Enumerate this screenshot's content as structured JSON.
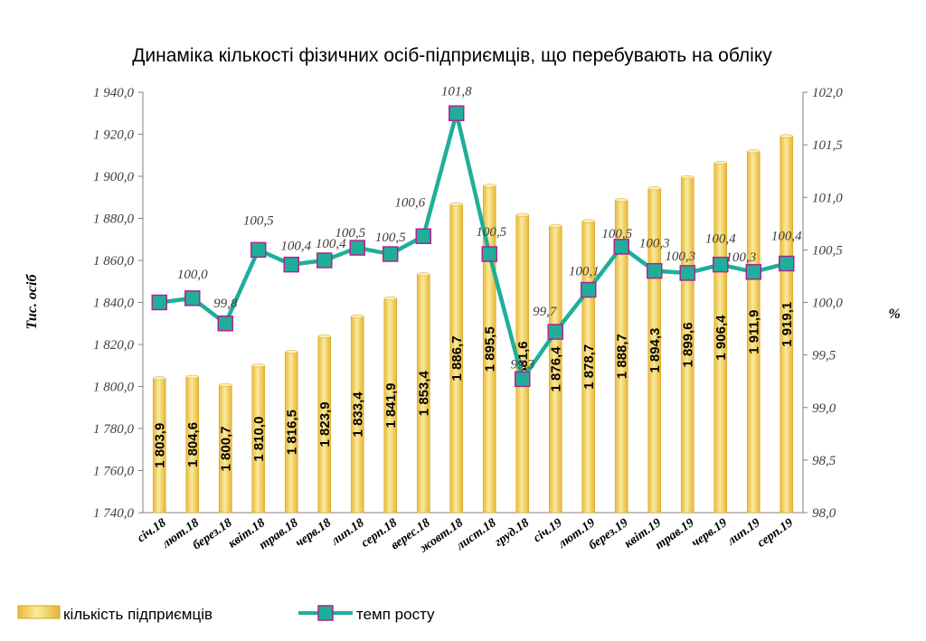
{
  "chart_data": {
    "type": "bar+line",
    "title": "Динаміка кількості фізичних осіб-підприємців, що перебувають на обліку",
    "categories": [
      "січ.18",
      "лют.18",
      "берез.18",
      "квіт.18",
      "трав.18",
      "черв.18",
      "лип.18",
      "серп.18",
      "верес.18",
      "жовт.18",
      "лист.18",
      "груд.18",
      "січ.19",
      "лют.19",
      "берез.19",
      "квіт.19",
      "трав.19",
      "черв.19",
      "лип.19",
      "серп.19"
    ],
    "series": [
      {
        "name": "кількість підприємців",
        "type": "bar",
        "axis": "left",
        "color": "#F2D566",
        "values": [
          1803.9,
          1804.6,
          1800.7,
          1810.0,
          1816.5,
          1823.9,
          1833.4,
          1841.9,
          1853.4,
          1886.7,
          1895.5,
          1881.6,
          1876.4,
          1878.7,
          1888.7,
          1894.3,
          1899.6,
          1906.4,
          1911.9,
          1919.1
        ],
        "labels": [
          "1 803,9",
          "1 804,6",
          "1 800,7",
          "1 810,0",
          "1 816,5",
          "1 823,9",
          "1 833,4",
          "1 841,9",
          "1 853,4",
          "1 886,7",
          "1 895,5",
          "1 881,6",
          "1 876,4",
          "1 878,7",
          "1 888,7",
          "1 894,3",
          "1 899,6",
          "1 906,4",
          "1 911,9",
          "1 919,1"
        ]
      },
      {
        "name": "темп росту",
        "type": "line",
        "axis": "right",
        "color": "#1FAE9A",
        "marker_border": "#B2228F",
        "values": [
          100.0,
          100.04,
          99.8,
          100.5,
          100.36,
          100.4,
          100.52,
          100.46,
          100.63,
          101.8,
          100.46,
          99.27,
          99.72,
          100.12,
          100.53,
          100.3,
          100.28,
          100.36,
          100.29,
          100.37
        ],
        "labels": [
          "",
          "100,0",
          "99,8",
          "100,5",
          "100,4",
          "100,4",
          "100,5",
          "100,5",
          "100,6",
          "101,8",
          "100,5",
          "99,3",
          "99,7",
          "100,1",
          "100,5",
          "100,3",
          "100,3",
          "100,4",
          "100,3",
          "100,4"
        ]
      }
    ],
    "y_left": {
      "label": "Тис. осіб",
      "range": [
        1740,
        1940
      ],
      "ticks": [
        "1 740,0",
        "1 760,0",
        "1 780,0",
        "1 800,0",
        "1 820,0",
        "1 840,0",
        "1 860,0",
        "1 880,0",
        "1 900,0",
        "1 920,0",
        "1 940,0"
      ]
    },
    "y_right": {
      "label": "%",
      "range": [
        98.0,
        102.0
      ],
      "ticks": [
        "98,0",
        "98,5",
        "99,0",
        "99,5",
        "100,0",
        "100,5",
        "101,0",
        "101,5",
        "102,0"
      ]
    },
    "grid": false,
    "legend_position": "bottom-left"
  }
}
